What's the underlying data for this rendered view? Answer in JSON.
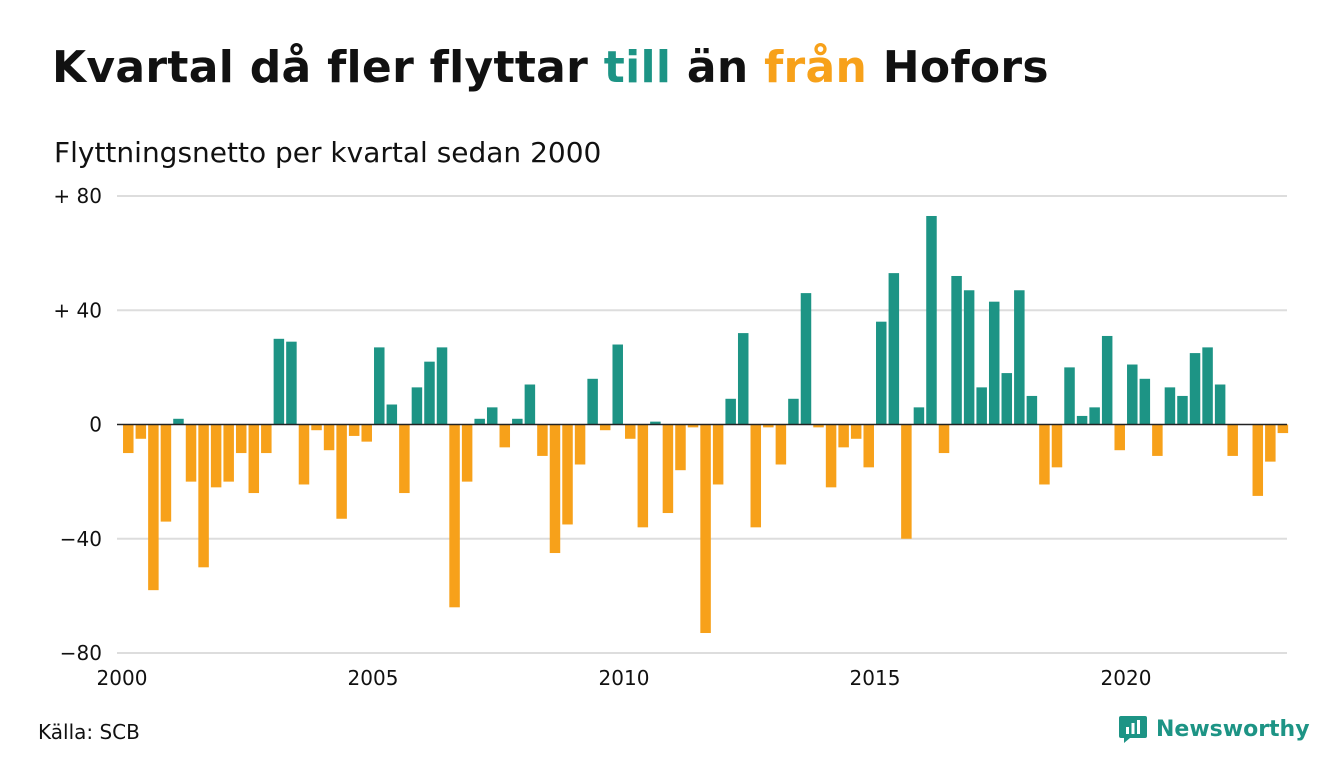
{
  "header": {
    "title_part1": "Kvartal då fler flyttar ",
    "title_till": "till",
    "title_part2": " än ",
    "title_fran": "från",
    "title_part3": " Hofors",
    "subtitle": "Flyttningsnetto per kvartal sedan 2000"
  },
  "footer": {
    "source": "Källa: SCB",
    "brand": "Newsworthy"
  },
  "colors": {
    "positive": "#1d9485",
    "negative": "#f7a11a",
    "grid": "#dddddd",
    "brand": "#1d9485"
  },
  "chart_data": {
    "type": "bar",
    "xlabel": "",
    "ylabel": "",
    "ylim": [
      -80,
      80
    ],
    "yticks": [
      80,
      40,
      0,
      -40,
      -80
    ],
    "ytick_labels": [
      "+ 80",
      "+ 40",
      "0",
      "−40",
      "−80"
    ],
    "xticks": [
      2000,
      2005,
      2010,
      2015,
      2020
    ],
    "x_start": "2000 Q1",
    "grid": "horizontal",
    "values": [
      -10,
      -5,
      -58,
      -34,
      2,
      -20,
      -50,
      -22,
      -20,
      -10,
      -24,
      -10,
      30,
      29,
      -21,
      -2,
      -9,
      -33,
      -4,
      -6,
      27,
      7,
      -24,
      13,
      22,
      27,
      -64,
      -20,
      2,
      6,
      -8,
      2,
      14,
      -11,
      -45,
      -35,
      -14,
      16,
      -2,
      28,
      -5,
      -36,
      1,
      -31,
      -16,
      -1,
      -73,
      -21,
      9,
      32,
      -36,
      -1,
      -14,
      9,
      46,
      -1,
      -22,
      -8,
      -5,
      -15,
      36,
      53,
      -40,
      6,
      73,
      -10,
      52,
      47,
      13,
      43,
      18,
      47,
      10,
      -21,
      -15,
      20,
      3,
      6,
      31,
      -9,
      21,
      16,
      -11,
      13,
      10,
      25,
      27,
      14,
      -11,
      0,
      -25,
      -13,
      -3
    ]
  }
}
